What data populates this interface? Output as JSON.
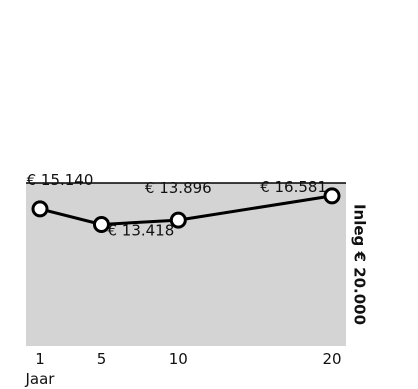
{
  "chart_data": {
    "type": "line",
    "categories": [
      "1",
      "5",
      "10",
      "20"
    ],
    "values": [
      15140,
      13418,
      13896,
      16581
    ],
    "value_labels": [
      "€ 15.140",
      "€ 13.418",
      "€ 13.896",
      "€ 16.581"
    ],
    "xlabel": "Jaar",
    "side_label": "Inleg € 20.000",
    "ylim": [
      0,
      18000
    ],
    "grid": false,
    "colors": {
      "plot_background": "#d4d4d4",
      "line": "#000000",
      "marker_fill": "#ffffff"
    }
  }
}
